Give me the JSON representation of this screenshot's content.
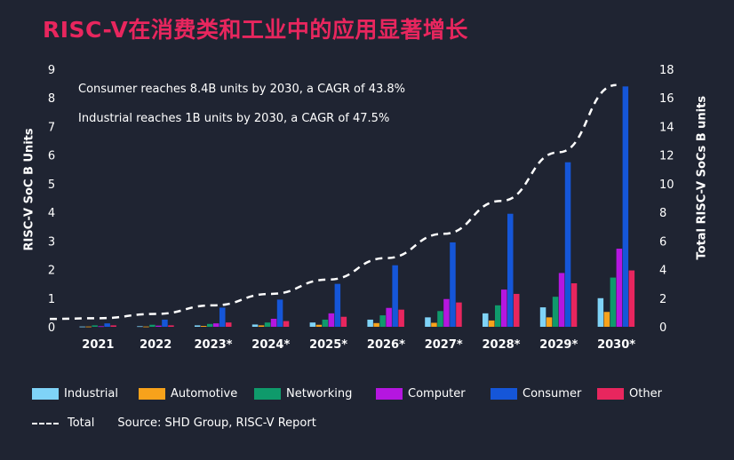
{
  "title": "RISC-V在消费类和工业中的应用显著增长",
  "annotations": [
    "Consumer reaches 8.4B units by 2030, a CAGR of 43.8%",
    "Industrial reaches 1B units by 2030, a CAGR of 47.5%"
  ],
  "source": "Source: SHD Group, RISC-V Report",
  "chart_data": {
    "type": "bar",
    "categories": [
      "2021",
      "2022",
      "2023*",
      "2024*",
      "2025*",
      "2026*",
      "2027*",
      "2028*",
      "2029*",
      "2030*"
    ],
    "ylabel": "RISC-V SoC B Units",
    "ylabel_right": "Total RISC-V SoCs B units",
    "ylim": [
      0,
      9
    ],
    "yticks": [
      "0",
      "1",
      "2",
      "3",
      "4",
      "5",
      "6",
      "7",
      "8",
      "9"
    ],
    "ylim_right": [
      0,
      18
    ],
    "yticks_right": [
      "0",
      "2",
      "4",
      "6",
      "8",
      "10",
      "12",
      "14",
      "16",
      "18"
    ],
    "grid": false,
    "legend_position": "bottom",
    "series": [
      {
        "name": "Industrial",
        "color": "#7fd3f7",
        "values": [
          0.01,
          0.02,
          0.05,
          0.08,
          0.15,
          0.25,
          0.33,
          0.47,
          0.68,
          1.0
        ]
      },
      {
        "name": "Automotive",
        "color": "#f7a21b",
        "values": [
          0.01,
          0.01,
          0.03,
          0.05,
          0.07,
          0.13,
          0.14,
          0.22,
          0.33,
          0.52
        ]
      },
      {
        "name": "Networking",
        "color": "#0f9a6b",
        "values": [
          0.05,
          0.07,
          0.1,
          0.15,
          0.25,
          0.4,
          0.55,
          0.75,
          1.05,
          1.72
        ]
      },
      {
        "name": "Computer",
        "color": "#b516e0",
        "values": [
          0.02,
          0.04,
          0.12,
          0.28,
          0.47,
          0.66,
          0.97,
          1.3,
          1.88,
          2.73
        ]
      },
      {
        "name": "Consumer",
        "color": "#1556d8",
        "values": [
          0.12,
          0.25,
          0.67,
          0.95,
          1.5,
          2.15,
          2.95,
          3.95,
          5.75,
          8.4
        ]
      },
      {
        "name": "Other",
        "color": "#e8265e",
        "values": [
          0.05,
          0.05,
          0.15,
          0.2,
          0.35,
          0.6,
          0.85,
          1.15,
          1.52,
          1.97
        ]
      }
    ],
    "total": {
      "name": "Total",
      "values": [
        0.6,
        0.9,
        1.5,
        2.3,
        3.3,
        4.8,
        6.5,
        8.8,
        12.2,
        16.9
      ]
    }
  }
}
